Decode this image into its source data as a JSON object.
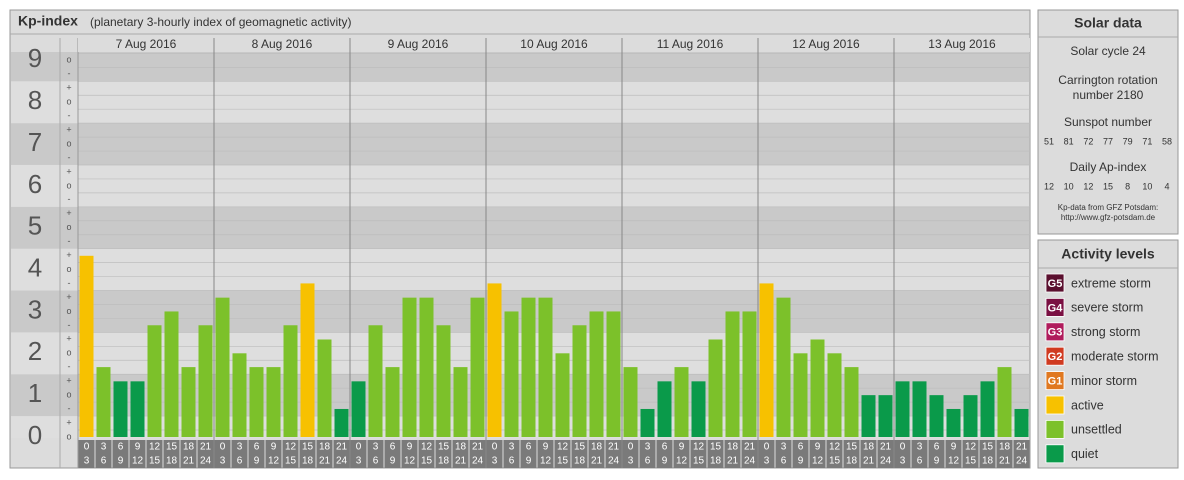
{
  "title": "Kp-index",
  "subtitle": "(planetary 3-hourly index of geomagnetic activity)",
  "chart_data": {
    "type": "bar",
    "days": [
      "7 Aug 2016",
      "8 Aug 2016",
      "9 Aug 2016",
      "10 Aug 2016",
      "11 Aug 2016",
      "12 Aug 2016",
      "13 Aug 2016"
    ],
    "hour_ranges": [
      [
        0,
        3
      ],
      [
        3,
        6
      ],
      [
        6,
        9
      ],
      [
        9,
        12
      ],
      [
        12,
        15
      ],
      [
        15,
        18
      ],
      [
        18,
        21
      ],
      [
        21,
        24
      ]
    ],
    "values": [
      [
        4.33,
        1.67,
        1.33,
        1.33,
        2.67,
        3,
        1.67,
        2.67
      ],
      [
        3.33,
        2,
        1.67,
        1.67,
        2.67,
        3.67,
        2.33,
        0.67
      ],
      [
        1.33,
        2.67,
        1.67,
        3.33,
        3.33,
        2.67,
        1.67,
        3.33
      ],
      [
        3.67,
        3,
        3.33,
        3.33,
        2,
        2.67,
        3,
        3
      ],
      [
        1.67,
        0.67,
        1.33,
        1.67,
        1.33,
        2.33,
        3,
        3
      ],
      [
        3.67,
        3.33,
        2,
        2.33,
        2,
        1.67,
        1,
        1
      ],
      [
        1.33,
        1.33,
        1,
        0.67,
        1,
        1.33,
        1.67,
        0.67
      ]
    ],
    "colors": [
      [
        "#f7c100",
        "#7cc12a",
        "#0a9a4a",
        "#0a9a4a",
        "#7cc12a",
        "#7cc12a",
        "#7cc12a",
        "#7cc12a"
      ],
      [
        "#7cc12a",
        "#7cc12a",
        "#7cc12a",
        "#7cc12a",
        "#7cc12a",
        "#f7c100",
        "#7cc12a",
        "#0a9a4a"
      ],
      [
        "#0a9a4a",
        "#7cc12a",
        "#7cc12a",
        "#7cc12a",
        "#7cc12a",
        "#7cc12a",
        "#7cc12a",
        "#7cc12a"
      ],
      [
        "#f7c100",
        "#7cc12a",
        "#7cc12a",
        "#7cc12a",
        "#7cc12a",
        "#7cc12a",
        "#7cc12a",
        "#7cc12a"
      ],
      [
        "#7cc12a",
        "#0a9a4a",
        "#0a9a4a",
        "#7cc12a",
        "#0a9a4a",
        "#7cc12a",
        "#7cc12a",
        "#7cc12a"
      ],
      [
        "#f7c100",
        "#7cc12a",
        "#7cc12a",
        "#7cc12a",
        "#7cc12a",
        "#7cc12a",
        "#0a9a4a",
        "#0a9a4a"
      ],
      [
        "#0a9a4a",
        "#0a9a4a",
        "#0a9a4a",
        "#0a9a4a",
        "#0a9a4a",
        "#0a9a4a",
        "#7cc12a",
        "#0a9a4a"
      ]
    ],
    "ylim": [
      0,
      9.2
    ],
    "yticks": [
      0,
      1,
      2,
      3,
      4,
      5,
      6,
      7,
      8,
      9
    ],
    "sublevels": [
      "-",
      "o",
      "+"
    ]
  },
  "solar_data": {
    "title": "Solar data",
    "solar_cycle": "Solar cycle 24",
    "carrington": [
      "Carrington rotation",
      "number 2180"
    ],
    "sunspot_label": "Sunspot number",
    "sunspot": [
      51,
      81,
      72,
      77,
      79,
      71,
      58
    ],
    "ap_label": "Daily Ap-index",
    "ap": [
      12,
      10,
      12,
      15,
      8,
      10,
      4
    ],
    "source": [
      "Kp-data from GFZ Potsdam:",
      "http://www.gfz-potsdam.de"
    ]
  },
  "activity_levels": {
    "title": "Activity levels",
    "items": [
      {
        "badge": "G5",
        "label": "extreme storm",
        "color": "#5a0f2e"
      },
      {
        "badge": "G4",
        "label": "severe storm",
        "color": "#7a1042"
      },
      {
        "badge": "G3",
        "label": "strong storm",
        "color": "#b01c5c"
      },
      {
        "badge": "G2",
        "label": "moderate storm",
        "color": "#d03a20"
      },
      {
        "badge": "G1",
        "label": "minor storm",
        "color": "#e07820"
      },
      {
        "label": "active",
        "color": "#f7c100"
      },
      {
        "label": "unsettled",
        "color": "#7cc12a"
      },
      {
        "label": "quiet",
        "color": "#0a9a4a"
      }
    ]
  }
}
